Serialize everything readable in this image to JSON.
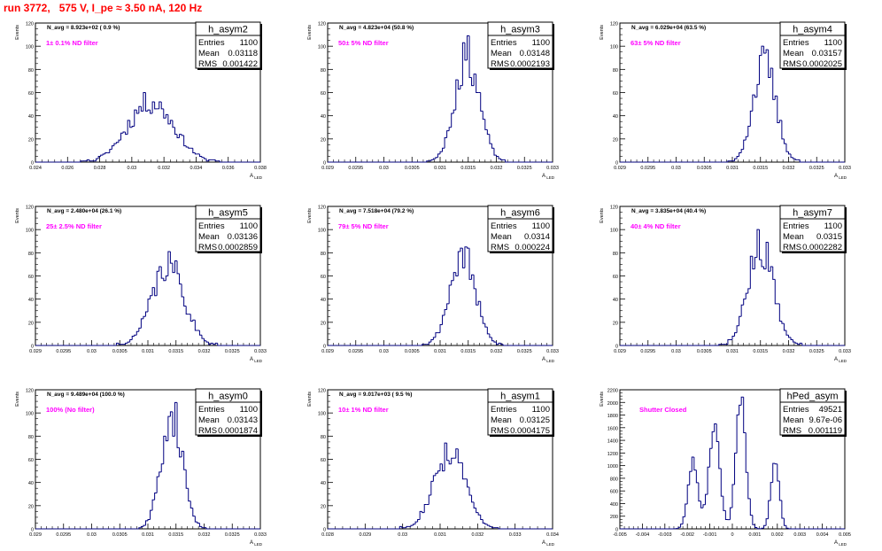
{
  "canvas_title": "run 3772,   575 V, I_pe ≈ 3.50 nA, 120 Hz",
  "colors": {
    "hist": "#000080",
    "annotation": "#ff00ff",
    "title": "#ff0000",
    "text": "#000000"
  },
  "axis": {
    "y_label": "Events",
    "x_label": "A",
    "x_label_sub": "LED"
  },
  "chart_data": [
    {
      "type": "bar",
      "name": "h_asym2",
      "navg": "N_avg = 8.923e+02 ( 0.9 %)",
      "filter": "1± 0.1% ND filter",
      "stats": {
        "Entries": "1100",
        "Mean": "0.03118",
        "RMS": "0.001422"
      },
      "xlim": [
        0.024,
        0.038
      ],
      "ylim": [
        0,
        120
      ],
      "xticks": [
        "0.024",
        "0.026",
        "0.028",
        "0.03",
        "0.032",
        "0.034",
        "0.036",
        "0.038"
      ],
      "yticks": [
        "0",
        "20",
        "40",
        "60",
        "80",
        "100",
        "120"
      ],
      "center": 0.03118,
      "sigma": 0.00142,
      "peak": 53,
      "seed": 11
    },
    {
      "type": "bar",
      "name": "h_asym3",
      "navg": "N_avg = 4.823e+04 (50.8 %)",
      "filter": "50± 5% ND filter",
      "stats": {
        "Entries": "1100",
        "Mean": "0.03148",
        "RMS": "0.0002193"
      },
      "xlim": [
        0.029,
        0.033
      ],
      "ylim": [
        0,
        120
      ],
      "xticks": [
        "0.029",
        "0.0295",
        "0.03",
        "0.0305",
        "0.031",
        "0.0315",
        "0.032",
        "0.0325",
        "0.033"
      ],
      "yticks": [
        "0",
        "20",
        "40",
        "60",
        "80",
        "100",
        "120"
      ],
      "center": 0.03148,
      "sigma": 0.00022,
      "peak": 93,
      "seed": 23
    },
    {
      "type": "bar",
      "name": "h_asym4",
      "navg": "N_avg = 6.029e+04 (63.5 %)",
      "filter": "63± 5% ND filter",
      "stats": {
        "Entries": "1100",
        "Mean": "0.03157",
        "RMS": "0.0002025"
      },
      "xlim": [
        0.029,
        0.033
      ],
      "ylim": [
        0,
        120
      ],
      "xticks": [
        "0.029",
        "0.0295",
        "0.03",
        "0.0305",
        "0.031",
        "0.0315",
        "0.032",
        "0.0325",
        "0.033"
      ],
      "yticks": [
        "0",
        "20",
        "40",
        "60",
        "80",
        "100",
        "120"
      ],
      "center": 0.03157,
      "sigma": 0.000202,
      "peak": 87,
      "seed": 37
    },
    {
      "type": "bar",
      "name": "h_asym5",
      "navg": "N_avg = 2.480e+04 (26.1 %)",
      "filter": "25± 2.5% ND filter",
      "stats": {
        "Entries": "1100",
        "Mean": "0.03136",
        "RMS": "0.0002859"
      },
      "xlim": [
        0.029,
        0.033
      ],
      "ylim": [
        0,
        120
      ],
      "xticks": [
        "0.029",
        "0.0295",
        "0.03",
        "0.0305",
        "0.031",
        "0.0315",
        "0.032",
        "0.0325",
        "0.033"
      ],
      "yticks": [
        "0",
        "20",
        "40",
        "60",
        "80",
        "100",
        "120"
      ],
      "center": 0.03136,
      "sigma": 0.000286,
      "peak": 70,
      "seed": 41
    },
    {
      "type": "bar",
      "name": "h_asym6",
      "navg": "N_avg = 7.518e+04 (79.2 %)",
      "filter": "79± 5% ND filter",
      "stats": {
        "Entries": "1100",
        "Mean": "0.0314",
        "RMS": "0.000224"
      },
      "xlim": [
        0.029,
        0.033
      ],
      "ylim": [
        0,
        120
      ],
      "xticks": [
        "0.029",
        "0.0295",
        "0.03",
        "0.0305",
        "0.031",
        "0.0315",
        "0.032",
        "0.0325",
        "0.033"
      ],
      "yticks": [
        "0",
        "20",
        "40",
        "60",
        "80",
        "100",
        "120"
      ],
      "center": 0.0314,
      "sigma": 0.000224,
      "peak": 80,
      "seed": 53
    },
    {
      "type": "bar",
      "name": "h_asym7",
      "navg": "N_avg = 3.835e+04 (40.4 %)",
      "filter": "40± 4% ND filter",
      "stats": {
        "Entries": "1100",
        "Mean": "0.0315",
        "RMS": "0.0002282"
      },
      "xlim": [
        0.029,
        0.033
      ],
      "ylim": [
        0,
        120
      ],
      "xticks": [
        "0.029",
        "0.0295",
        "0.03",
        "0.0305",
        "0.031",
        "0.0315",
        "0.032",
        "0.0325",
        "0.033"
      ],
      "yticks": [
        "0",
        "20",
        "40",
        "60",
        "80",
        "100",
        "120"
      ],
      "center": 0.0315,
      "sigma": 0.000228,
      "peak": 87,
      "seed": 67
    },
    {
      "type": "bar",
      "name": "h_asym0",
      "navg": "N_avg = 9.489e+04 (100.0 %)",
      "filter": "100% (No filter)",
      "stats": {
        "Entries": "1100",
        "Mean": "0.03143",
        "RMS": "0.0001874"
      },
      "xlim": [
        0.029,
        0.033
      ],
      "ylim": [
        0,
        120
      ],
      "xticks": [
        "0.029",
        "0.0295",
        "0.03",
        "0.0305",
        "0.031",
        "0.0315",
        "0.032",
        "0.0325",
        "0.033"
      ],
      "yticks": [
        "0",
        "20",
        "40",
        "60",
        "80",
        "100",
        "120"
      ],
      "center": 0.03143,
      "sigma": 0.000187,
      "peak": 103,
      "seed": 71
    },
    {
      "type": "bar",
      "name": "h_asym1",
      "navg": "N_avg = 9.017e+03 ( 9.5 %)",
      "filter": "10± 1% ND filter",
      "stats": {
        "Entries": "1100",
        "Mean": "0.03125",
        "RMS": "0.0004175"
      },
      "xlim": [
        0.028,
        0.034
      ],
      "ylim": [
        0,
        120
      ],
      "xticks": [
        "0.028",
        "0.029",
        "0.03",
        "0.031",
        "0.032",
        "0.033",
        "0.034"
      ],
      "yticks": [
        "0",
        "20",
        "40",
        "60",
        "80",
        "100",
        "120"
      ],
      "center": 0.03125,
      "sigma": 0.000418,
      "peak": 68,
      "seed": 83
    },
    {
      "type": "line",
      "name": "hPed_asym",
      "navg": "",
      "filter": "Shutter Closed",
      "stats": {
        "Entries": "49521",
        "Mean": "9.67e-06",
        "RMS": "0.001119"
      },
      "xlim": [
        -0.005,
        0.005
      ],
      "ylim": [
        0,
        2200
      ],
      "xticks": [
        "-0.005",
        "-0.004",
        "-0.003",
        "-0.002",
        "-0.001",
        "0",
        "0.001",
        "0.002",
        "0.003",
        "0.004",
        "0.005"
      ],
      "yticks": [
        "0",
        "200",
        "400",
        "600",
        "800",
        "1000",
        "1200",
        "1400",
        "1600",
        "1800",
        "2000",
        "2200"
      ],
      "components": [
        {
          "center": -0.00175,
          "sigma": 0.00022,
          "amp": 1080
        },
        {
          "center": -0.0008,
          "sigma": 0.00024,
          "amp": 1600
        },
        {
          "center": 0.00038,
          "sigma": 0.00022,
          "amp": 2050
        },
        {
          "center": 0.0019,
          "sigma": 0.00018,
          "amp": 1120
        }
      ],
      "seed": 97
    }
  ]
}
